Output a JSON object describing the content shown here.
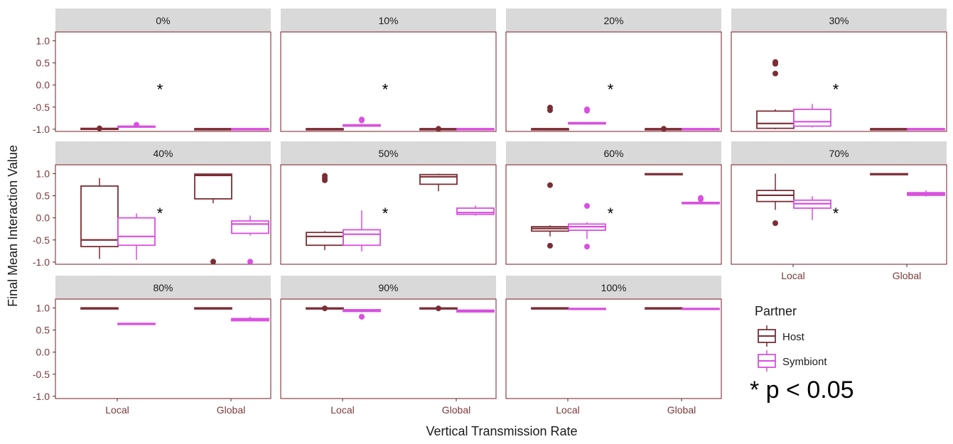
{
  "chart_data": {
    "type": "box",
    "xlabel": "Vertical Transmission Rate",
    "ylabel": "Final Mean Interaction Value",
    "ylim": [
      -1.05,
      1.2
    ],
    "y_ticks": [
      "1.0",
      "0.5",
      "0.0",
      "-0.5",
      "-1.0"
    ],
    "y_tick_values": [
      1.0,
      0.5,
      0.0,
      -0.5,
      -1.0
    ],
    "categories": [
      "Local",
      "Global"
    ],
    "legend": {
      "title": "Partner",
      "placement": "right",
      "entries": [
        {
          "name": "Host",
          "color": "#7b2d35"
        },
        {
          "name": "Symbiont",
          "color": "#d94fe0"
        }
      ]
    },
    "significance_note": "* p < 0.05",
    "star_label": "*",
    "colors": {
      "Host": "#7b2d35",
      "Symbiont": "#d94fe0",
      "strip": "#d9d9d9",
      "panel_border": "#7a1a24"
    },
    "panels": [
      {
        "label": "0%",
        "star": true,
        "star_y": 0.0,
        "boxes": {
          "Local": {
            "Host": {
              "q1": -1.0,
              "med": -0.99,
              "q3": -0.98,
              "lo": -1.0,
              "hi": -0.97,
              "out": [
                -0.98
              ]
            },
            "Symbiont": {
              "q1": -0.95,
              "med": -0.94,
              "q3": -0.93,
              "lo": -0.96,
              "hi": -0.92,
              "out": [
                -0.9
              ]
            }
          },
          "Global": {
            "Host": {
              "q1": -1.0,
              "med": -0.99,
              "q3": -0.99,
              "lo": -1.0,
              "hi": -0.98,
              "out": []
            },
            "Symbiont": {
              "q1": -1.0,
              "med": -0.99,
              "q3": -0.99,
              "lo": -1.0,
              "hi": -0.98,
              "out": []
            }
          }
        }
      },
      {
        "label": "10%",
        "star": true,
        "star_y": 0.0,
        "boxes": {
          "Local": {
            "Host": {
              "q1": -1.0,
              "med": -0.99,
              "q3": -0.99,
              "lo": -1.0,
              "hi": -0.98,
              "out": []
            },
            "Symbiont": {
              "q1": -0.93,
              "med": -0.91,
              "q3": -0.9,
              "lo": -0.94,
              "hi": -0.88,
              "out": [
                -0.78,
                -0.8
              ]
            }
          },
          "Global": {
            "Host": {
              "q1": -1.0,
              "med": -0.99,
              "q3": -0.99,
              "lo": -1.0,
              "hi": -0.98,
              "out": [
                -0.99
              ]
            },
            "Symbiont": {
              "q1": -1.0,
              "med": -0.99,
              "q3": -0.99,
              "lo": -1.0,
              "hi": -0.98,
              "out": []
            }
          }
        }
      },
      {
        "label": "20%",
        "star": true,
        "star_y": 0.0,
        "boxes": {
          "Local": {
            "Host": {
              "q1": -1.0,
              "med": -0.99,
              "q3": -0.99,
              "lo": -1.0,
              "hi": -0.98,
              "out": [
                -0.51,
                -0.57
              ]
            },
            "Symbiont": {
              "q1": -0.88,
              "med": -0.86,
              "q3": -0.85,
              "lo": -0.89,
              "hi": -0.84,
              "out": [
                -0.55,
                -0.58
              ]
            }
          },
          "Global": {
            "Host": {
              "q1": -1.0,
              "med": -0.99,
              "q3": -0.99,
              "lo": -1.0,
              "hi": -0.98,
              "out": [
                -0.99
              ]
            },
            "Symbiont": {
              "q1": -1.0,
              "med": -0.99,
              "q3": -0.99,
              "lo": -1.0,
              "hi": -0.98,
              "out": []
            }
          }
        }
      },
      {
        "label": "30%",
        "star": true,
        "star_y": 0.0,
        "boxes": {
          "Local": {
            "Host": {
              "q1": -0.98,
              "med": -0.87,
              "q3": -0.59,
              "lo": -1.0,
              "hi": -0.55,
              "out": [
                0.52,
                0.48,
                0.26
              ]
            },
            "Symbiont": {
              "q1": -0.93,
              "med": -0.83,
              "q3": -0.55,
              "lo": -0.96,
              "hi": -0.43,
              "out": []
            }
          },
          "Global": {
            "Host": {
              "q1": -1.0,
              "med": -0.99,
              "q3": -0.99,
              "lo": -1.0,
              "hi": -0.98,
              "out": []
            },
            "Symbiont": {
              "q1": -1.0,
              "med": -0.99,
              "q3": -0.99,
              "lo": -1.0,
              "hi": -0.98,
              "out": []
            }
          }
        }
      },
      {
        "label": "40%",
        "star": true,
        "star_y": 0.2,
        "boxes": {
          "Local": {
            "Host": {
              "q1": -0.65,
              "med": -0.5,
              "q3": 0.72,
              "lo": -0.93,
              "hi": 0.9,
              "out": []
            },
            "Symbiont": {
              "q1": -0.62,
              "med": -0.42,
              "q3": 0.0,
              "lo": -0.95,
              "hi": 0.1,
              "out": []
            }
          },
          "Global": {
            "Host": {
              "q1": 0.43,
              "med": 0.96,
              "q3": 0.99,
              "lo": 0.33,
              "hi": 1.0,
              "out": [
                -0.99
              ]
            },
            "Symbiont": {
              "q1": -0.35,
              "med": -0.14,
              "q3": -0.07,
              "lo": -0.4,
              "hi": 0.05,
              "out": [
                -0.99
              ]
            }
          }
        }
      },
      {
        "label": "50%",
        "star": true,
        "star_y": 0.2,
        "boxes": {
          "Local": {
            "Host": {
              "q1": -0.62,
              "med": -0.42,
              "q3": -0.33,
              "lo": -0.73,
              "hi": -0.3,
              "out": [
                0.95,
                0.9,
                0.85
              ]
            },
            "Symbiont": {
              "q1": -0.62,
              "med": -0.37,
              "q3": -0.27,
              "lo": -0.76,
              "hi": 0.17,
              "out": []
            }
          },
          "Global": {
            "Host": {
              "q1": 0.76,
              "med": 0.93,
              "q3": 0.98,
              "lo": 0.6,
              "hi": 1.0,
              "out": []
            },
            "Symbiont": {
              "q1": 0.08,
              "med": 0.12,
              "q3": 0.22,
              "lo": 0.05,
              "hi": 0.28,
              "out": []
            }
          }
        }
      },
      {
        "label": "60%",
        "star": true,
        "star_y": 0.2,
        "boxes": {
          "Local": {
            "Host": {
              "q1": -0.3,
              "med": -0.24,
              "q3": -0.2,
              "lo": -0.42,
              "hi": -0.17,
              "out": [
                0.74,
                -0.63
              ]
            },
            "Symbiont": {
              "q1": -0.28,
              "med": -0.2,
              "q3": -0.14,
              "lo": -0.48,
              "hi": -0.1,
              "out": [
                0.27,
                -0.65
              ]
            }
          },
          "Global": {
            "Host": {
              "q1": 0.98,
              "med": 0.99,
              "q3": 1.0,
              "lo": 0.97,
              "hi": 1.0,
              "out": []
            },
            "Symbiont": {
              "q1": 0.32,
              "med": 0.34,
              "q3": 0.35,
              "lo": 0.31,
              "hi": 0.37,
              "out": [
                0.45,
                0.42
              ]
            }
          }
        }
      },
      {
        "label": "70%",
        "star": true,
        "star_y": 0.2,
        "boxes": {
          "Local": {
            "Host": {
              "q1": 0.37,
              "med": 0.51,
              "q3": 0.62,
              "lo": 0.18,
              "hi": 1.0,
              "out": [
                -0.12
              ]
            },
            "Symbiont": {
              "q1": 0.22,
              "med": 0.32,
              "q3": 0.4,
              "lo": -0.05,
              "hi": 0.49,
              "out": []
            }
          },
          "Global": {
            "Host": {
              "q1": 0.98,
              "med": 0.99,
              "q3": 1.0,
              "lo": 0.97,
              "hi": 1.0,
              "out": []
            },
            "Symbiont": {
              "q1": 0.51,
              "med": 0.54,
              "q3": 0.57,
              "lo": 0.48,
              "hi": 0.62,
              "out": []
            }
          }
        }
      },
      {
        "label": "80%",
        "star": false,
        "boxes": {
          "Local": {
            "Host": {
              "q1": 0.99,
              "med": 1.0,
              "q3": 1.0,
              "lo": 0.99,
              "hi": 1.0,
              "out": []
            },
            "Symbiont": {
              "q1": 0.63,
              "med": 0.64,
              "q3": 0.65,
              "lo": 0.62,
              "hi": 0.65,
              "out": []
            }
          },
          "Global": {
            "Host": {
              "q1": 0.99,
              "med": 1.0,
              "q3": 1.0,
              "lo": 0.99,
              "hi": 1.0,
              "out": []
            },
            "Symbiont": {
              "q1": 0.71,
              "med": 0.74,
              "q3": 0.76,
              "lo": 0.7,
              "hi": 0.8,
              "out": []
            }
          }
        }
      },
      {
        "label": "90%",
        "star": false,
        "boxes": {
          "Local": {
            "Host": {
              "q1": 0.98,
              "med": 0.99,
              "q3": 1.0,
              "lo": 0.97,
              "hi": 1.0,
              "out": [
                0.99
              ]
            },
            "Symbiont": {
              "q1": 0.92,
              "med": 0.94,
              "q3": 0.96,
              "lo": 0.9,
              "hi": 0.97,
              "out": [
                0.8
              ]
            }
          },
          "Global": {
            "Host": {
              "q1": 0.98,
              "med": 0.99,
              "q3": 1.0,
              "lo": 0.97,
              "hi": 1.0,
              "out": [
                0.99
              ]
            },
            "Symbiont": {
              "q1": 0.91,
              "med": 0.93,
              "q3": 0.95,
              "lo": 0.9,
              "hi": 0.96,
              "out": []
            }
          }
        }
      },
      {
        "label": "100%",
        "star": false,
        "boxes": {
          "Local": {
            "Host": {
              "q1": 0.99,
              "med": 1.0,
              "q3": 1.0,
              "lo": 0.99,
              "hi": 1.0,
              "out": []
            },
            "Symbiont": {
              "q1": 0.97,
              "med": 0.98,
              "q3": 0.99,
              "lo": 0.97,
              "hi": 0.99,
              "out": []
            }
          },
          "Global": {
            "Host": {
              "q1": 0.99,
              "med": 1.0,
              "q3": 1.0,
              "lo": 0.99,
              "hi": 1.0,
              "out": []
            },
            "Symbiont": {
              "q1": 0.97,
              "med": 0.98,
              "q3": 0.99,
              "lo": 0.97,
              "hi": 0.99,
              "out": []
            }
          }
        }
      }
    ]
  }
}
